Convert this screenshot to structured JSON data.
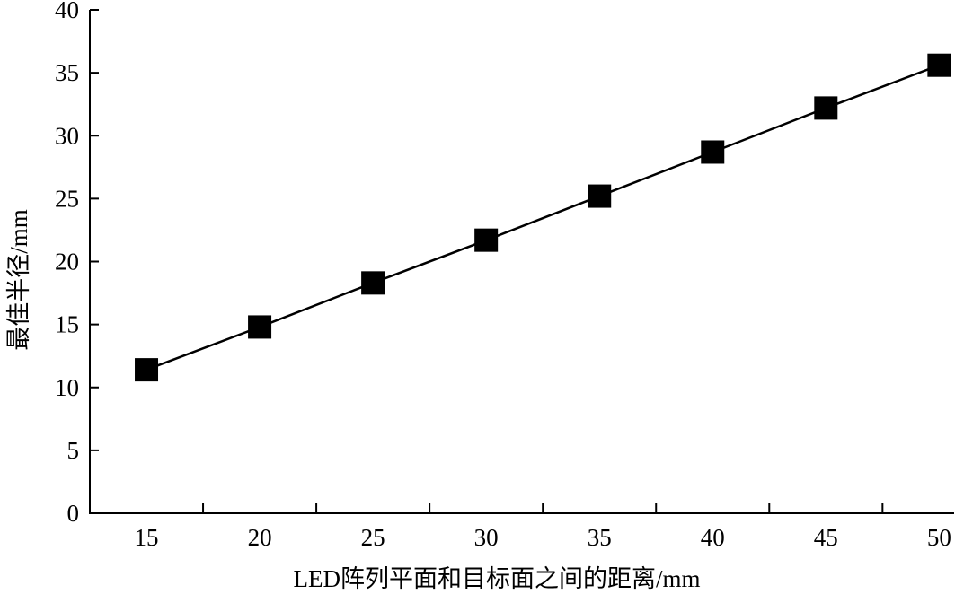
{
  "chart_data": {
    "type": "line",
    "x": [
      15,
      20,
      25,
      30,
      35,
      40,
      45,
      50
    ],
    "series": [
      {
        "values": [
          11.4,
          14.8,
          18.3,
          21.7,
          25.2,
          28.7,
          32.2,
          35.6
        ],
        "marker": "square",
        "color": "#000000"
      }
    ],
    "xlabel": "LED阵列平面和目标面之间的距离/mm",
    "ylabel": "最佳半径/mm",
    "xlim": [
      12.5,
      50.7
    ],
    "ylim": [
      0,
      40
    ],
    "xticks": [
      15,
      20,
      25,
      30,
      35,
      40,
      45,
      50
    ],
    "yticks": [
      0,
      5,
      10,
      15,
      20,
      25,
      30,
      35,
      40
    ],
    "grid": false
  }
}
